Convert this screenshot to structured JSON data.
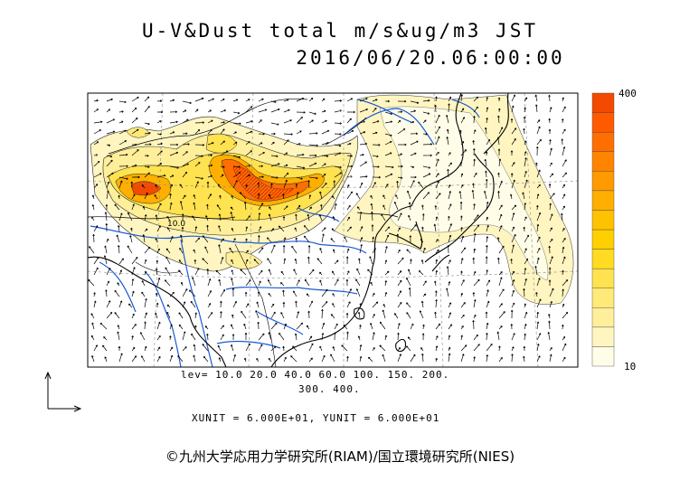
{
  "header": {
    "title_line1": "U-V&Dust  total  m/s&ug/m3 JST",
    "title_line2": "2016/06/20.06:00:00"
  },
  "colorbar": {
    "max_label": "400",
    "min_label": "10",
    "colors": [
      "#fffde8",
      "#fff5c0",
      "#ffef9a",
      "#ffe979",
      "#ffe24f",
      "#ffdb22",
      "#ffd000",
      "#ffc200",
      "#ffaf00",
      "#ff9a00",
      "#ff8400",
      "#ff6e00",
      "#ff5a00",
      "#f24a00"
    ]
  },
  "legend": {
    "levels_line1": "lev= 10.0 20.0 40.0 60.0 100. 150. 200.",
    "levels_line2": "300. 400.",
    "units": "XUNIT = 6.000E+01, YUNIT = 6.000E+01",
    "contour_label": "10.0"
  },
  "footer": {
    "credit": "©九州大学応用力学研究所(RIAM)/国立環境研究所(NIES)"
  },
  "colors": {
    "land_outline": "#000000",
    "rivers": "#1a5ad7",
    "hatch": "#cc2200"
  }
}
